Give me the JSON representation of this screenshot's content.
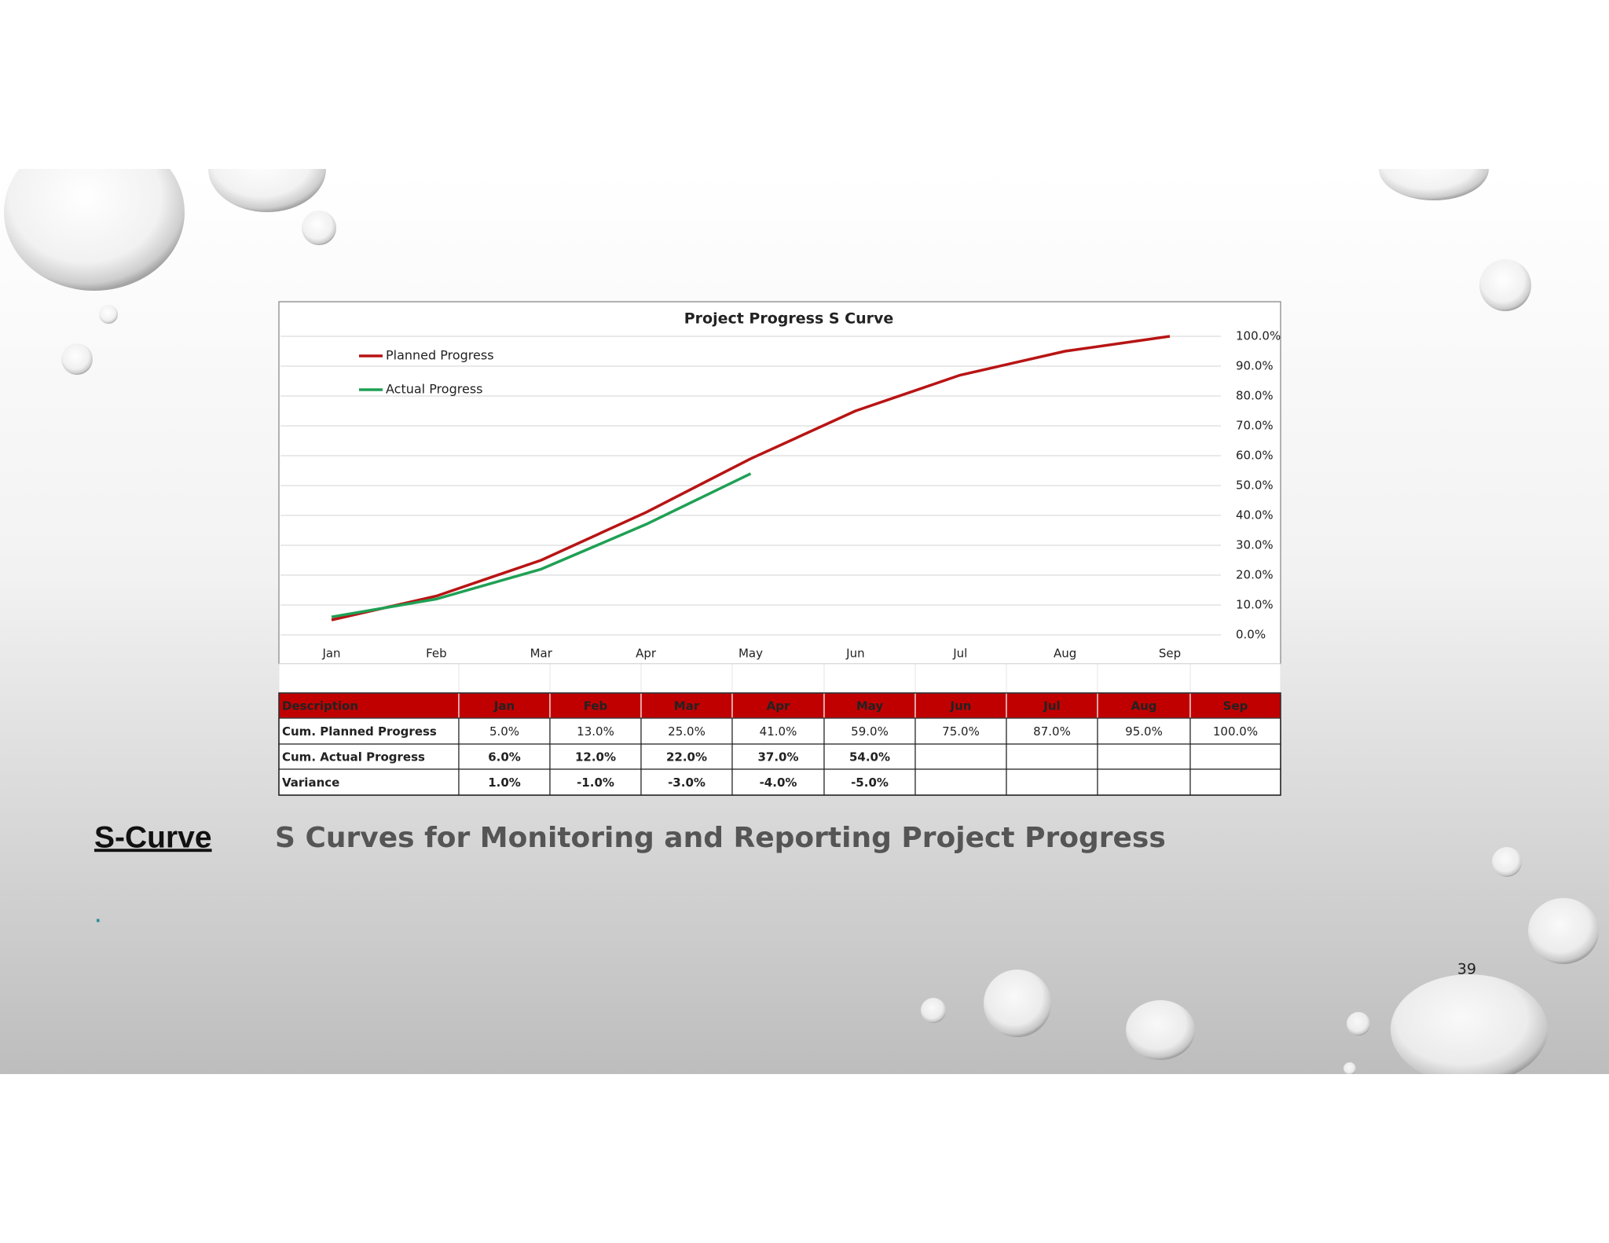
{
  "chart_data": {
    "type": "line",
    "title": "Project Progress S Curve",
    "categories": [
      "Jan",
      "Feb",
      "Mar",
      "Apr",
      "May",
      "Jun",
      "Jul",
      "Aug",
      "Sep"
    ],
    "series": [
      {
        "name": "Planned Progress",
        "color": "#b81414",
        "values": [
          5,
          13,
          25,
          41,
          59,
          75,
          87,
          95,
          100
        ]
      },
      {
        "name": "Actual Progress",
        "color": "#1fa055",
        "values": [
          6,
          12,
          22,
          37,
          54,
          null,
          null,
          null,
          null
        ]
      }
    ],
    "ylim": [
      0,
      100
    ],
    "yticks": [
      {
        "value": 0,
        "label": "0.0%"
      },
      {
        "value": 10,
        "label": "10.0%"
      },
      {
        "value": 20,
        "label": "20.0%"
      },
      {
        "value": 30,
        "label": "30.0%"
      },
      {
        "value": 40,
        "label": "40.0%"
      },
      {
        "value": 50,
        "label": "50.0%"
      },
      {
        "value": 60,
        "label": "60.0%"
      },
      {
        "value": 70,
        "label": "70.0%"
      },
      {
        "value": 80,
        "label": "80.0%"
      },
      {
        "value": 90,
        "label": "90.0%"
      },
      {
        "value": 100,
        "label": "100.0%"
      }
    ],
    "grid": true,
    "legend": "upper left",
    "y_axis_side": "right"
  },
  "table": {
    "header": [
      "Description",
      "Jan",
      "Feb",
      "Mar",
      "Apr",
      "May",
      "Jun",
      "Jul",
      "Aug",
      "Sep"
    ],
    "rows": [
      [
        "Cum. Planned Progress",
        "5.0%",
        "13.0%",
        "25.0%",
        "41.0%",
        "59.0%",
        "75.0%",
        "87.0%",
        "95.0%",
        "100.0%"
      ],
      [
        "Cum. Actual Progress",
        "6.0%",
        "12.0%",
        "22.0%",
        "37.0%",
        "54.0%"
      ],
      [
        "Variance",
        "1.0%",
        "-1.0%",
        "-3.0%",
        "-4.0%",
        "-5.0%"
      ]
    ]
  },
  "slide": {
    "label": "S-Curve",
    "heading": "S Curves for Monitoring and Reporting Project Progress",
    "bullet": ".",
    "page_number": "39"
  }
}
